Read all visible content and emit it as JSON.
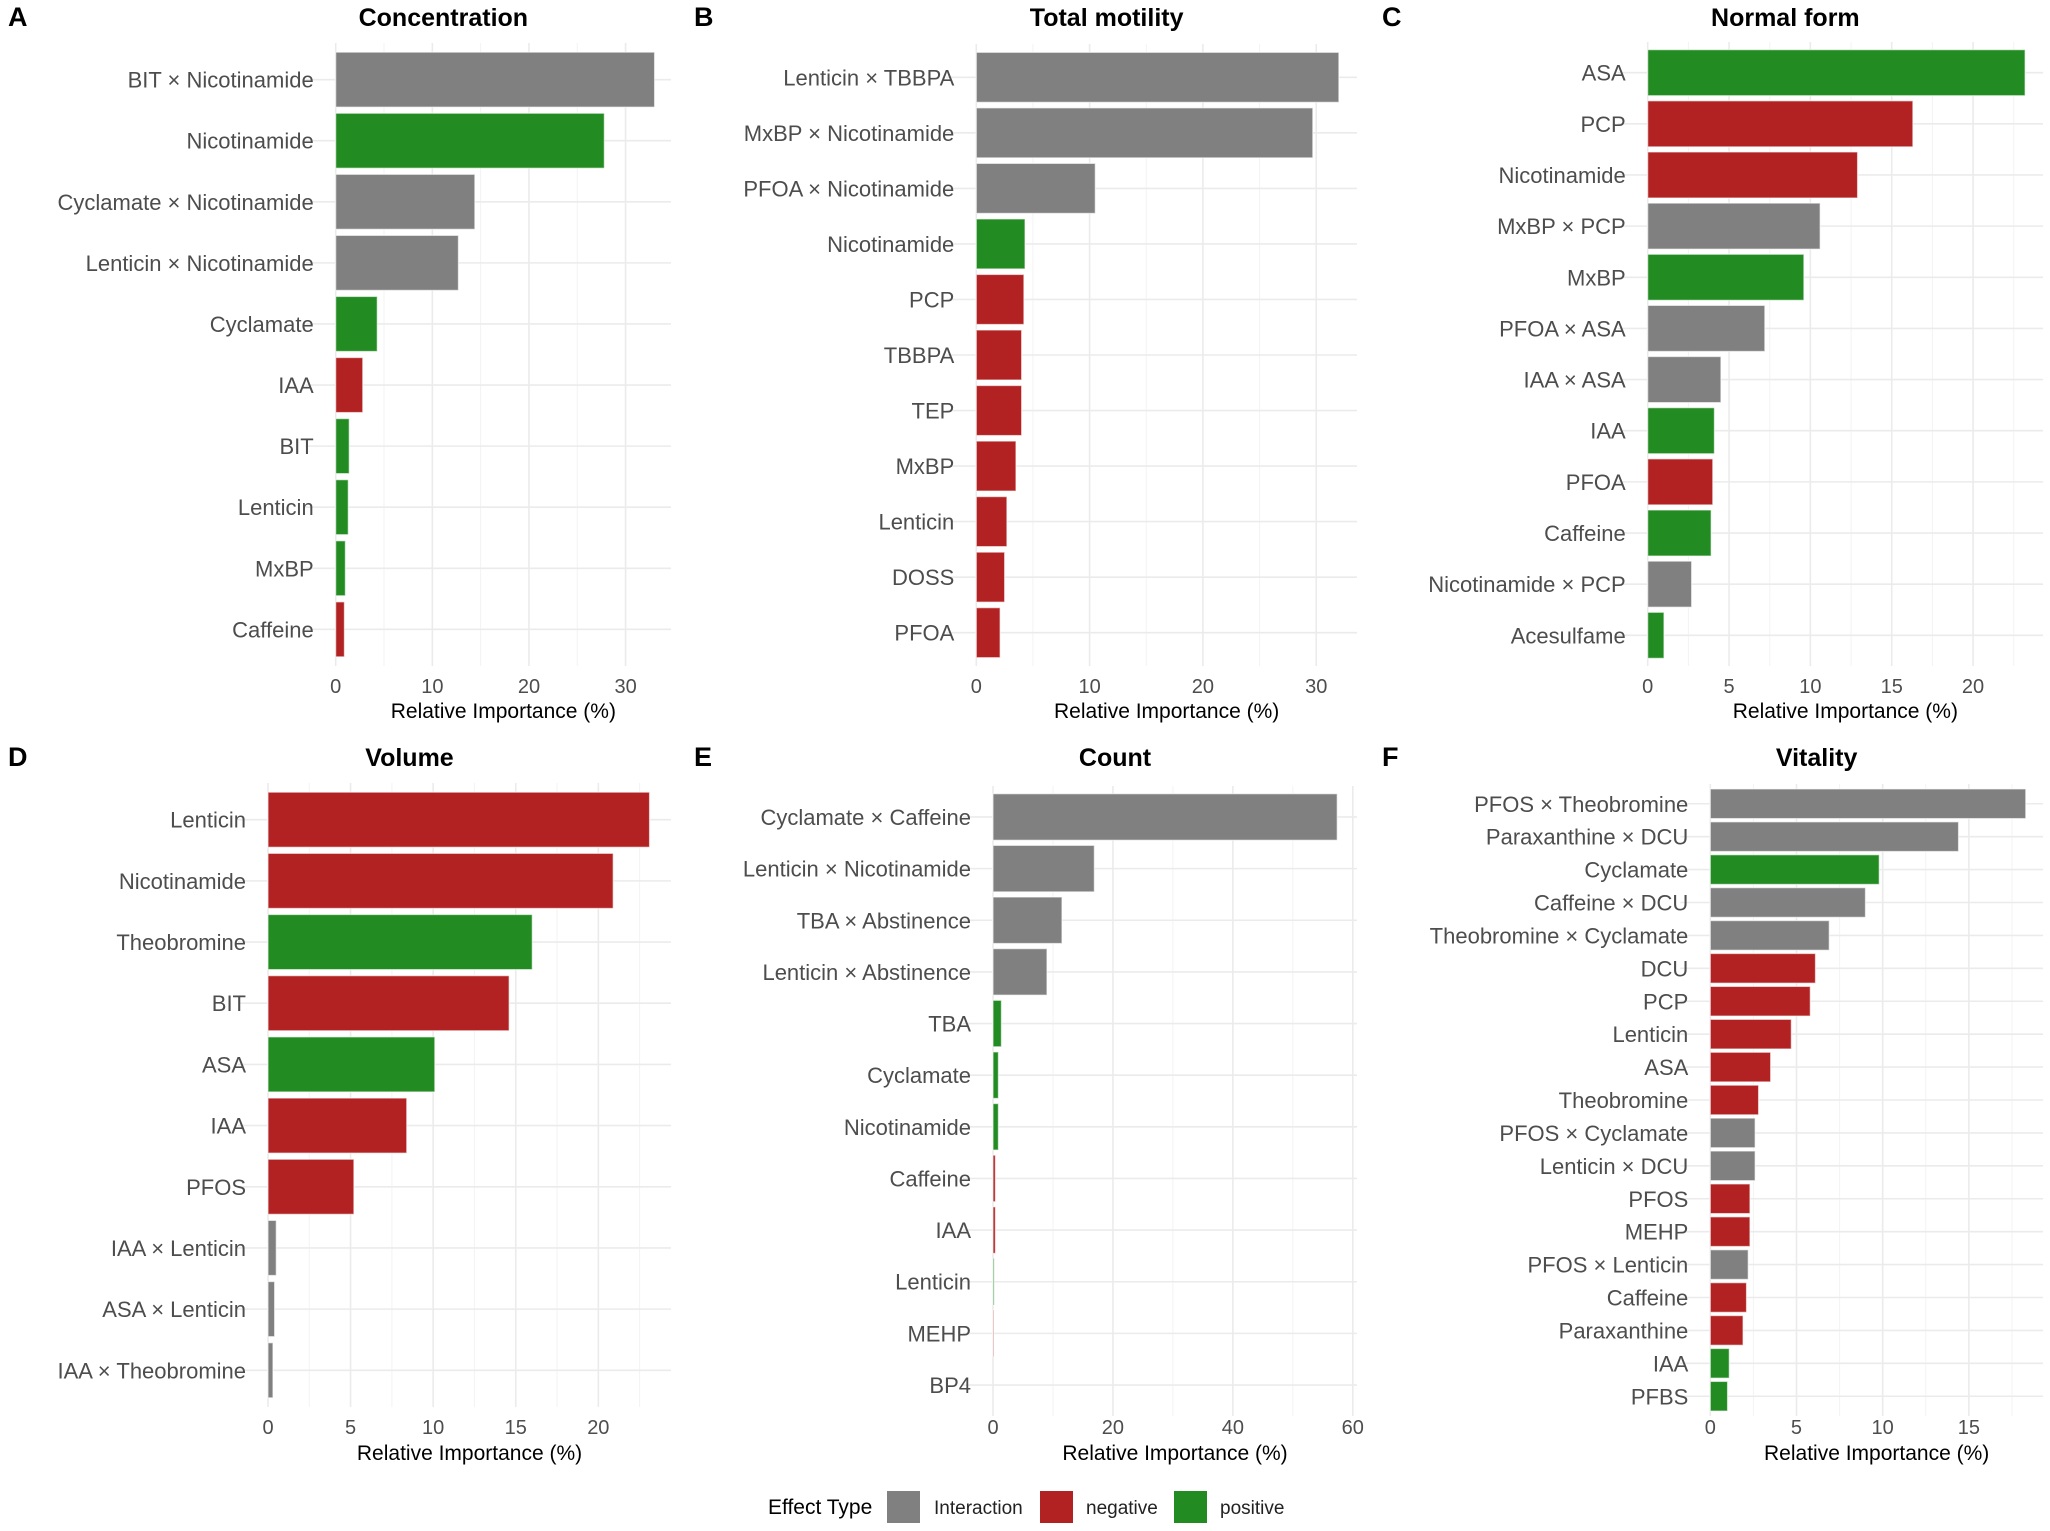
{
  "legend": {
    "title": "Effect Type",
    "items": [
      {
        "label": "Interaction",
        "color": "#808080"
      },
      {
        "label": "negative",
        "color": "#B22222"
      },
      {
        "label": "positive",
        "color": "#228B22"
      }
    ]
  },
  "colors": {
    "Interaction": "#808080",
    "negative": "#B22222",
    "positive": "#228B22"
  },
  "chart_data": [
    {
      "type": "bar",
      "orientation": "horizontal",
      "panel": "A",
      "title": "Concentration",
      "xlabel": "Relative Importance (%)",
      "ylabel": "",
      "xlim": [
        0,
        34.7
      ],
      "xticks": [
        0,
        10,
        20,
        30
      ],
      "grid": true,
      "categories": [
        "BIT × Nicotinamide",
        "Nicotinamide",
        "Cyclamate × Nicotinamide",
        "Lenticin × Nicotinamide",
        "Cyclamate",
        "IAA",
        "BIT",
        "Lenticin",
        "MxBP",
        "Caffeine"
      ],
      "values": [
        33.0,
        27.8,
        14.4,
        12.7,
        4.3,
        2.8,
        1.4,
        1.3,
        1.0,
        0.9
      ],
      "effect": [
        "Interaction",
        "positive",
        "Interaction",
        "Interaction",
        "positive",
        "negative",
        "positive",
        "positive",
        "positive",
        "negative"
      ]
    },
    {
      "type": "bar",
      "orientation": "horizontal",
      "panel": "B",
      "title": "Total motility",
      "xlabel": "Relative Importance (%)",
      "ylabel": "",
      "xlim": [
        0,
        33.6
      ],
      "xticks": [
        0,
        10,
        20,
        30
      ],
      "grid": true,
      "categories": [
        "Lenticin × TBBPA",
        "MxBP × Nicotinamide",
        "PFOA × Nicotinamide",
        "Nicotinamide",
        "PCP",
        "TBBPA",
        "TEP",
        "MxBP",
        "Lenticin",
        "DOSS",
        "PFOA"
      ],
      "values": [
        32.0,
        29.7,
        10.5,
        4.3,
        4.2,
        4.0,
        4.0,
        3.5,
        2.7,
        2.5,
        2.1
      ],
      "effect": [
        "Interaction",
        "Interaction",
        "Interaction",
        "positive",
        "negative",
        "negative",
        "negative",
        "negative",
        "negative",
        "negative",
        "negative"
      ]
    },
    {
      "type": "bar",
      "orientation": "horizontal",
      "panel": "C",
      "title": "Normal form",
      "xlabel": "Relative Importance (%)",
      "ylabel": "",
      "xlim": [
        0,
        24.3
      ],
      "xticks": [
        0,
        5,
        10,
        15,
        20
      ],
      "grid": true,
      "categories": [
        "ASA",
        "PCP",
        "Nicotinamide",
        "MxBP × PCP",
        "MxBP",
        "PFOA × ASA",
        "IAA × ASA",
        "IAA",
        "PFOA",
        "Caffeine",
        "Nicotinamide × PCP",
        "Acesulfame"
      ],
      "values": [
        23.2,
        16.3,
        12.9,
        10.6,
        9.6,
        7.2,
        4.5,
        4.1,
        4.0,
        3.9,
        2.7,
        1.0
      ],
      "effect": [
        "positive",
        "negative",
        "negative",
        "Interaction",
        "positive",
        "Interaction",
        "Interaction",
        "positive",
        "negative",
        "positive",
        "Interaction",
        "positive"
      ]
    },
    {
      "type": "bar",
      "orientation": "horizontal",
      "panel": "D",
      "title": "Volume",
      "xlabel": "Relative Importance (%)",
      "ylabel": "",
      "xlim": [
        0,
        24.4
      ],
      "xticks": [
        0,
        5,
        10,
        15,
        20
      ],
      "grid": true,
      "categories": [
        "Lenticin",
        "Nicotinamide",
        "Theobromine",
        "BIT",
        "ASA",
        "IAA",
        "PFOS",
        "IAA × Lenticin",
        "ASA × Lenticin",
        "IAA × Theobromine"
      ],
      "values": [
        23.1,
        20.9,
        16.0,
        14.6,
        10.1,
        8.4,
        5.2,
        0.5,
        0.4,
        0.3
      ],
      "effect": [
        "negative",
        "negative",
        "positive",
        "negative",
        "positive",
        "negative",
        "negative",
        "Interaction",
        "Interaction",
        "Interaction"
      ]
    },
    {
      "type": "bar",
      "orientation": "horizontal",
      "panel": "E",
      "title": "Count",
      "xlabel": "Relative Importance (%)",
      "ylabel": "",
      "xlim": [
        0,
        60.7
      ],
      "xticks": [
        0,
        20,
        40,
        60
      ],
      "grid": true,
      "categories": [
        "Cyclamate × Caffeine",
        "Lenticin × Nicotinamide",
        "TBA × Abstinence",
        "Lenticin × Abstinence",
        "TBA",
        "Cyclamate",
        "Nicotinamide",
        "Caffeine",
        "IAA",
        "Lenticin",
        "MEHP",
        "BP4"
      ],
      "values": [
        57.4,
        16.9,
        11.5,
        9.0,
        1.4,
        0.9,
        0.9,
        0.4,
        0.4,
        0.2,
        0.1,
        0.0
      ],
      "effect": [
        "Interaction",
        "Interaction",
        "Interaction",
        "Interaction",
        "positive",
        "positive",
        "positive",
        "negative",
        "negative",
        "positive",
        "negative",
        "negative"
      ]
    },
    {
      "type": "bar",
      "orientation": "horizontal",
      "panel": "F",
      "title": "Vitality",
      "xlabel": "Relative Importance (%)",
      "ylabel": "",
      "xlim": [
        0,
        19.3
      ],
      "xticks": [
        0,
        5,
        10,
        15
      ],
      "grid": true,
      "categories": [
        "PFOS × Theobromine",
        "Paraxanthine × DCU",
        "Cyclamate",
        "Caffeine × DCU",
        "Theobromine × Cyclamate",
        "DCU",
        "PCP",
        "Lenticin",
        "ASA",
        "Theobromine",
        "PFOS × Cyclamate",
        "Lenticin × DCU",
        "PFOS",
        "MEHP",
        "PFOS × Lenticin",
        "Caffeine",
        "Paraxanthine",
        "IAA",
        "PFBS"
      ],
      "values": [
        18.3,
        14.4,
        9.8,
        9.0,
        6.9,
        6.1,
        5.8,
        4.7,
        3.5,
        2.8,
        2.6,
        2.6,
        2.3,
        2.3,
        2.2,
        2.1,
        1.9,
        1.1,
        1.0
      ],
      "effect": [
        "Interaction",
        "Interaction",
        "positive",
        "Interaction",
        "Interaction",
        "negative",
        "negative",
        "negative",
        "negative",
        "negative",
        "Interaction",
        "Interaction",
        "negative",
        "negative",
        "Interaction",
        "negative",
        "negative",
        "positive",
        "positive"
      ]
    }
  ]
}
